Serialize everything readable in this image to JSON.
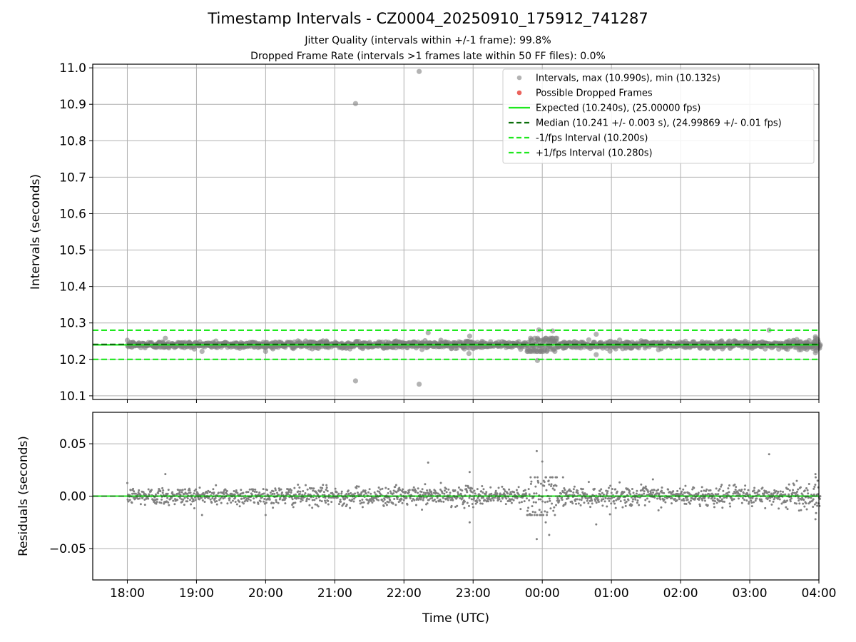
{
  "figure": {
    "title": "Timestamp Intervals - CZ0004_20250910_175912_741287",
    "subtitle_1": "Jitter Quality (intervals within +/-1 frame): 99.8%",
    "subtitle_2": "Dropped Frame Rate (intervals >1 frames late within 50 FF files): 0.0%"
  },
  "colors": {
    "points": "#808080",
    "dropped": "#e8483f",
    "expected": "#1ee81e",
    "median": "#0a6e0a",
    "fps_bounds": "#1ee81e",
    "grid": "#b0b0b0"
  },
  "chart_data": [
    {
      "type": "scatter",
      "name": "intervals",
      "xlabel": "",
      "ylabel": "Intervals (seconds)",
      "xlim_hours": [
        -0.5,
        10.0
      ],
      "ylim": [
        10.09,
        11.01
      ],
      "y_ticks": [
        10.1,
        10.2,
        10.3,
        10.4,
        10.5,
        10.6,
        10.7,
        10.8,
        10.9,
        11.0
      ],
      "y_tick_labels": [
        "10.1",
        "10.2",
        "10.3",
        "10.4",
        "10.5",
        "10.6",
        "10.7",
        "10.8",
        "10.9",
        "11.0"
      ],
      "grid": true,
      "legend_position": "top-right",
      "legend": [
        {
          "label": "Intervals, max (10.990s), min (10.132s)",
          "kind": "point-gray"
        },
        {
          "label": "Possible Dropped Frames",
          "kind": "point-red"
        },
        {
          "label": "Expected (10.240s), (25.00000 fps)",
          "kind": "line-expected"
        },
        {
          "label": "Median (10.241 +/- 0.003 s), (24.99869 +/- 0.01 fps)",
          "kind": "line-median"
        },
        {
          "label": "-1/fps Interval (10.200s)",
          "kind": "line-dash-bright"
        },
        {
          "label": "+1/fps Interval (10.280s)",
          "kind": "line-dash-bright"
        }
      ],
      "reference_lines": {
        "expected": 10.24,
        "median": 10.241,
        "minus_1fps": 10.2,
        "plus_1fps": 10.28
      },
      "series": [
        {
          "name": "Intervals, max (10.990s), min (10.132s)",
          "baseline": 10.24,
          "typical_spread": 0.006,
          "t_start": 0.0,
          "t_end": 10.02
        },
        {
          "name": "Possible Dropped Frames",
          "points": []
        }
      ],
      "outliers": [
        {
          "t": 3.3,
          "y": 10.902
        },
        {
          "t": 4.22,
          "y": 10.99
        },
        {
          "t": 3.3,
          "y": 10.141
        },
        {
          "t": 4.22,
          "y": 10.132
        },
        {
          "t": 4.35,
          "y": 10.273
        },
        {
          "t": 4.95,
          "y": 10.264
        },
        {
          "t": 5.95,
          "y": 10.281
        },
        {
          "t": 5.93,
          "y": 10.197
        },
        {
          "t": 6.15,
          "y": 10.278
        },
        {
          "t": 6.78,
          "y": 10.269
        },
        {
          "t": 6.78,
          "y": 10.213
        },
        {
          "t": 9.28,
          "y": 10.28
        },
        {
          "t": 9.95,
          "y": 10.262
        },
        {
          "t": 9.95,
          "y": 10.218
        },
        {
          "t": 0.55,
          "y": 10.258
        },
        {
          "t": 4.94,
          "y": 10.216
        }
      ]
    },
    {
      "type": "scatter",
      "name": "residuals",
      "xlabel": "Time (UTC)",
      "ylabel": "Residuals (seconds)",
      "xlim_hours": [
        -0.5,
        10.0
      ],
      "ylim": [
        -0.08,
        0.08
      ],
      "y_ticks": [
        -0.05,
        0.0,
        0.05
      ],
      "y_tick_labels": [
        "−0.05",
        "0.00",
        "0.05"
      ],
      "x_ticks_hours": [
        0,
        1,
        2,
        3,
        4,
        5,
        6,
        7,
        8,
        9,
        10
      ],
      "x_tick_labels": [
        "18:00",
        "19:00",
        "20:00",
        "21:00",
        "22:00",
        "23:00",
        "00:00",
        "01:00",
        "02:00",
        "03:00",
        "04:00"
      ],
      "grid": true,
      "zero_line": 0.0,
      "outliers": [
        {
          "t": 5.92,
          "y": 0.043
        },
        {
          "t": 5.92,
          "y": -0.041
        },
        {
          "t": 6.0,
          "y": 0.033
        },
        {
          "t": 6.1,
          "y": -0.037
        },
        {
          "t": 4.35,
          "y": 0.032
        },
        {
          "t": 9.28,
          "y": 0.04
        },
        {
          "t": 4.95,
          "y": -0.025
        },
        {
          "t": 6.78,
          "y": -0.027
        },
        {
          "t": 9.95,
          "y": -0.022
        },
        {
          "t": 4.95,
          "y": 0.023
        },
        {
          "t": 9.95,
          "y": 0.021
        },
        {
          "t": 0.55,
          "y": 0.021
        },
        {
          "t": 6.3,
          "y": 0.018
        },
        {
          "t": 7.6,
          "y": 0.016
        },
        {
          "t": 6.05,
          "y": -0.025
        }
      ]
    }
  ]
}
